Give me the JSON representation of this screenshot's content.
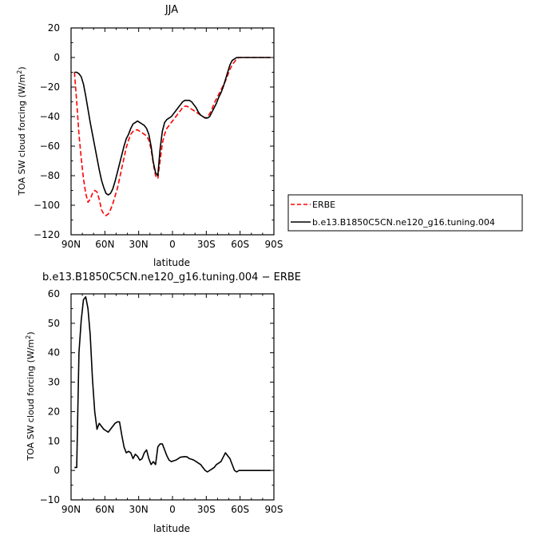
{
  "chart_data": [
    {
      "type": "line",
      "title": "JJA",
      "xlabel": "latitude",
      "ylabel": "TOA SW cloud forcing (W/m²)",
      "xlim": [
        90,
        -90
      ],
      "ylim": [
        -120,
        20
      ],
      "xticks": [
        90,
        60,
        30,
        0,
        -30,
        -60,
        -90
      ],
      "xtick_labels": [
        "90N",
        "60N",
        "30N",
        "0",
        "30S",
        "60S",
        "90S"
      ],
      "yticks": [
        20,
        0,
        -20,
        -40,
        -60,
        -80,
        -100,
        -120
      ],
      "ytick_labels": [
        "20",
        "0",
        "−20",
        "−40",
        "−60",
        "−80",
        "−100",
        "−120"
      ],
      "legend_position": "right",
      "series": [
        {
          "name": "ERBE",
          "color": "#ff0000",
          "style": "dashed",
          "x": [
            87,
            85,
            83,
            81,
            79,
            77,
            75,
            73,
            71,
            69,
            67,
            65,
            63,
            61,
            59,
            57,
            55,
            53,
            51,
            49,
            47,
            45,
            43,
            41,
            39,
            37,
            35,
            33,
            31,
            29,
            27,
            25,
            23,
            21,
            19,
            17,
            15,
            13,
            11,
            9,
            7,
            5,
            3,
            1,
            -1,
            -3,
            -5,
            -7,
            -9,
            -11,
            -13,
            -15,
            -17,
            -19,
            -21,
            -23,
            -25,
            -27,
            -29,
            -31,
            -33,
            -35,
            -37,
            -39,
            -41,
            -43,
            -45,
            -47,
            -49,
            -51,
            -53,
            -55,
            -57,
            -59,
            -61,
            -63,
            -65,
            -67,
            -69,
            -71,
            -73,
            -75,
            -77,
            -79,
            -81,
            -83,
            -85,
            -87
          ],
          "y": [
            -10,
            -30,
            -52,
            -68,
            -82,
            -92,
            -98,
            -96,
            -92,
            -90,
            -91,
            -96,
            -103,
            -106,
            -107,
            -106,
            -103,
            -99,
            -94,
            -89,
            -82,
            -75,
            -68,
            -61,
            -56,
            -52,
            -50,
            -49,
            -49,
            -50,
            -51,
            -52,
            -53,
            -56,
            -62,
            -72,
            -80,
            -82,
            -70,
            -58,
            -52,
            -48,
            -46,
            -44,
            -42,
            -40,
            -38,
            -36,
            -34,
            -33,
            -33,
            -34,
            -35,
            -36,
            -37,
            -38,
            -39,
            -40,
            -41,
            -40,
            -38,
            -35,
            -31,
            -28,
            -25,
            -22,
            -19,
            -16,
            -12,
            -8,
            -5,
            -3,
            -1,
            0,
            0,
            0,
            0,
            0,
            0,
            0,
            0,
            0,
            0,
            0,
            0,
            0,
            0,
            0
          ]
        },
        {
          "name": "b.e13.B1850C5CN.ne120_g16.tuning.004",
          "color": "#000000",
          "style": "solid",
          "x": [
            87,
            85,
            83,
            81,
            79,
            77,
            75,
            73,
            71,
            69,
            67,
            65,
            63,
            61,
            59,
            57,
            55,
            53,
            51,
            49,
            47,
            45,
            43,
            41,
            39,
            37,
            35,
            33,
            31,
            29,
            27,
            25,
            23,
            21,
            19,
            17,
            15,
            13,
            11,
            9,
            7,
            5,
            3,
            1,
            -1,
            -3,
            -5,
            -7,
            -9,
            -11,
            -13,
            -15,
            -17,
            -19,
            -21,
            -23,
            -25,
            -27,
            -29,
            -31,
            -33,
            -35,
            -37,
            -39,
            -41,
            -43,
            -45,
            -47,
            -49,
            -51,
            -53,
            -55,
            -57,
            -59,
            -61,
            -63,
            -65,
            -67,
            -69,
            -71,
            -73,
            -75,
            -77,
            -79,
            -81,
            -83,
            -85,
            -87
          ],
          "y": [
            -10,
            -10,
            -11,
            -13,
            -18,
            -26,
            -35,
            -44,
            -52,
            -60,
            -68,
            -76,
            -83,
            -88,
            -92,
            -93,
            -92,
            -89,
            -84,
            -78,
            -72,
            -66,
            -60,
            -55,
            -52,
            -48,
            -45,
            -44,
            -43,
            -44,
            -45,
            -46,
            -48,
            -52,
            -60,
            -71,
            -78,
            -80,
            -62,
            -50,
            -44,
            -42,
            -41,
            -40,
            -38,
            -36,
            -34,
            -32,
            -30,
            -29,
            -29,
            -29,
            -30,
            -32,
            -34,
            -37,
            -39,
            -40,
            -41,
            -41,
            -40,
            -37,
            -34,
            -31,
            -27,
            -24,
            -20,
            -15,
            -10,
            -5,
            -2,
            -1,
            0,
            0,
            0,
            0,
            0,
            0,
            0,
            0,
            0,
            0,
            0,
            0,
            0,
            0,
            0,
            0
          ]
        }
      ]
    },
    {
      "type": "line",
      "title": "b.e13.B1850C5CN.ne120_g16.tuning.004 − ERBE",
      "xlabel": "latitude",
      "ylabel": "TOA SW cloud forcing (W/m²)",
      "xlim": [
        90,
        -90
      ],
      "ylim": [
        -10,
        60
      ],
      "xticks": [
        90,
        60,
        30,
        0,
        -30,
        -60,
        -90
      ],
      "xtick_labels": [
        "90N",
        "60N",
        "30N",
        "0",
        "30S",
        "60S",
        "90S"
      ],
      "yticks": [
        60,
        50,
        40,
        30,
        20,
        10,
        0,
        -10
      ],
      "ytick_labels": [
        "60",
        "50",
        "40",
        "30",
        "20",
        "10",
        "0",
        "−10"
      ],
      "series": [
        {
          "color": "#000000",
          "style": "solid",
          "x": [
            87,
            85,
            83,
            81,
            79,
            77,
            75,
            73,
            71,
            69,
            67,
            65,
            63,
            61,
            59,
            57,
            55,
            53,
            51,
            49,
            47,
            45,
            43,
            41,
            39,
            37,
            35,
            33,
            31,
            29,
            27,
            25,
            23,
            21,
            19,
            17,
            15,
            13,
            11,
            9,
            7,
            5,
            3,
            1,
            -1,
            -3,
            -5,
            -7,
            -9,
            -11,
            -13,
            -15,
            -17,
            -19,
            -21,
            -23,
            -25,
            -27,
            -29,
            -31,
            -33,
            -35,
            -37,
            -39,
            -41,
            -43,
            -45,
            -47,
            -49,
            -51,
            -53,
            -55,
            -57,
            -59,
            -61,
            -63,
            -65,
            -67,
            -69,
            -71,
            -73,
            -75,
            -77,
            -79,
            -81,
            -83,
            -85,
            -87
          ],
          "y": [
            1,
            1,
            40,
            51,
            58,
            59,
            55,
            46,
            31,
            20,
            14,
            16,
            15,
            14,
            13.5,
            13,
            14,
            15,
            16,
            16.5,
            16.5,
            12,
            8,
            6,
            6.5,
            6,
            4,
            5.5,
            4.8,
            3.5,
            4,
            6,
            7,
            4,
            2,
            3,
            2,
            8,
            9,
            9,
            7,
            5,
            3.5,
            3,
            3.3,
            3.5,
            4,
            4.5,
            4.6,
            4.7,
            4.6,
            4,
            3.8,
            3.5,
            3,
            2.5,
            2,
            1,
            0,
            -0.5,
            0,
            0.5,
            1,
            2,
            2.5,
            3,
            4.5,
            6,
            5,
            4,
            2,
            0,
            -0.5,
            0,
            0,
            0,
            0,
            0,
            0,
            0,
            0,
            0,
            0,
            0,
            0,
            0,
            0,
            0
          ]
        }
      ]
    }
  ]
}
